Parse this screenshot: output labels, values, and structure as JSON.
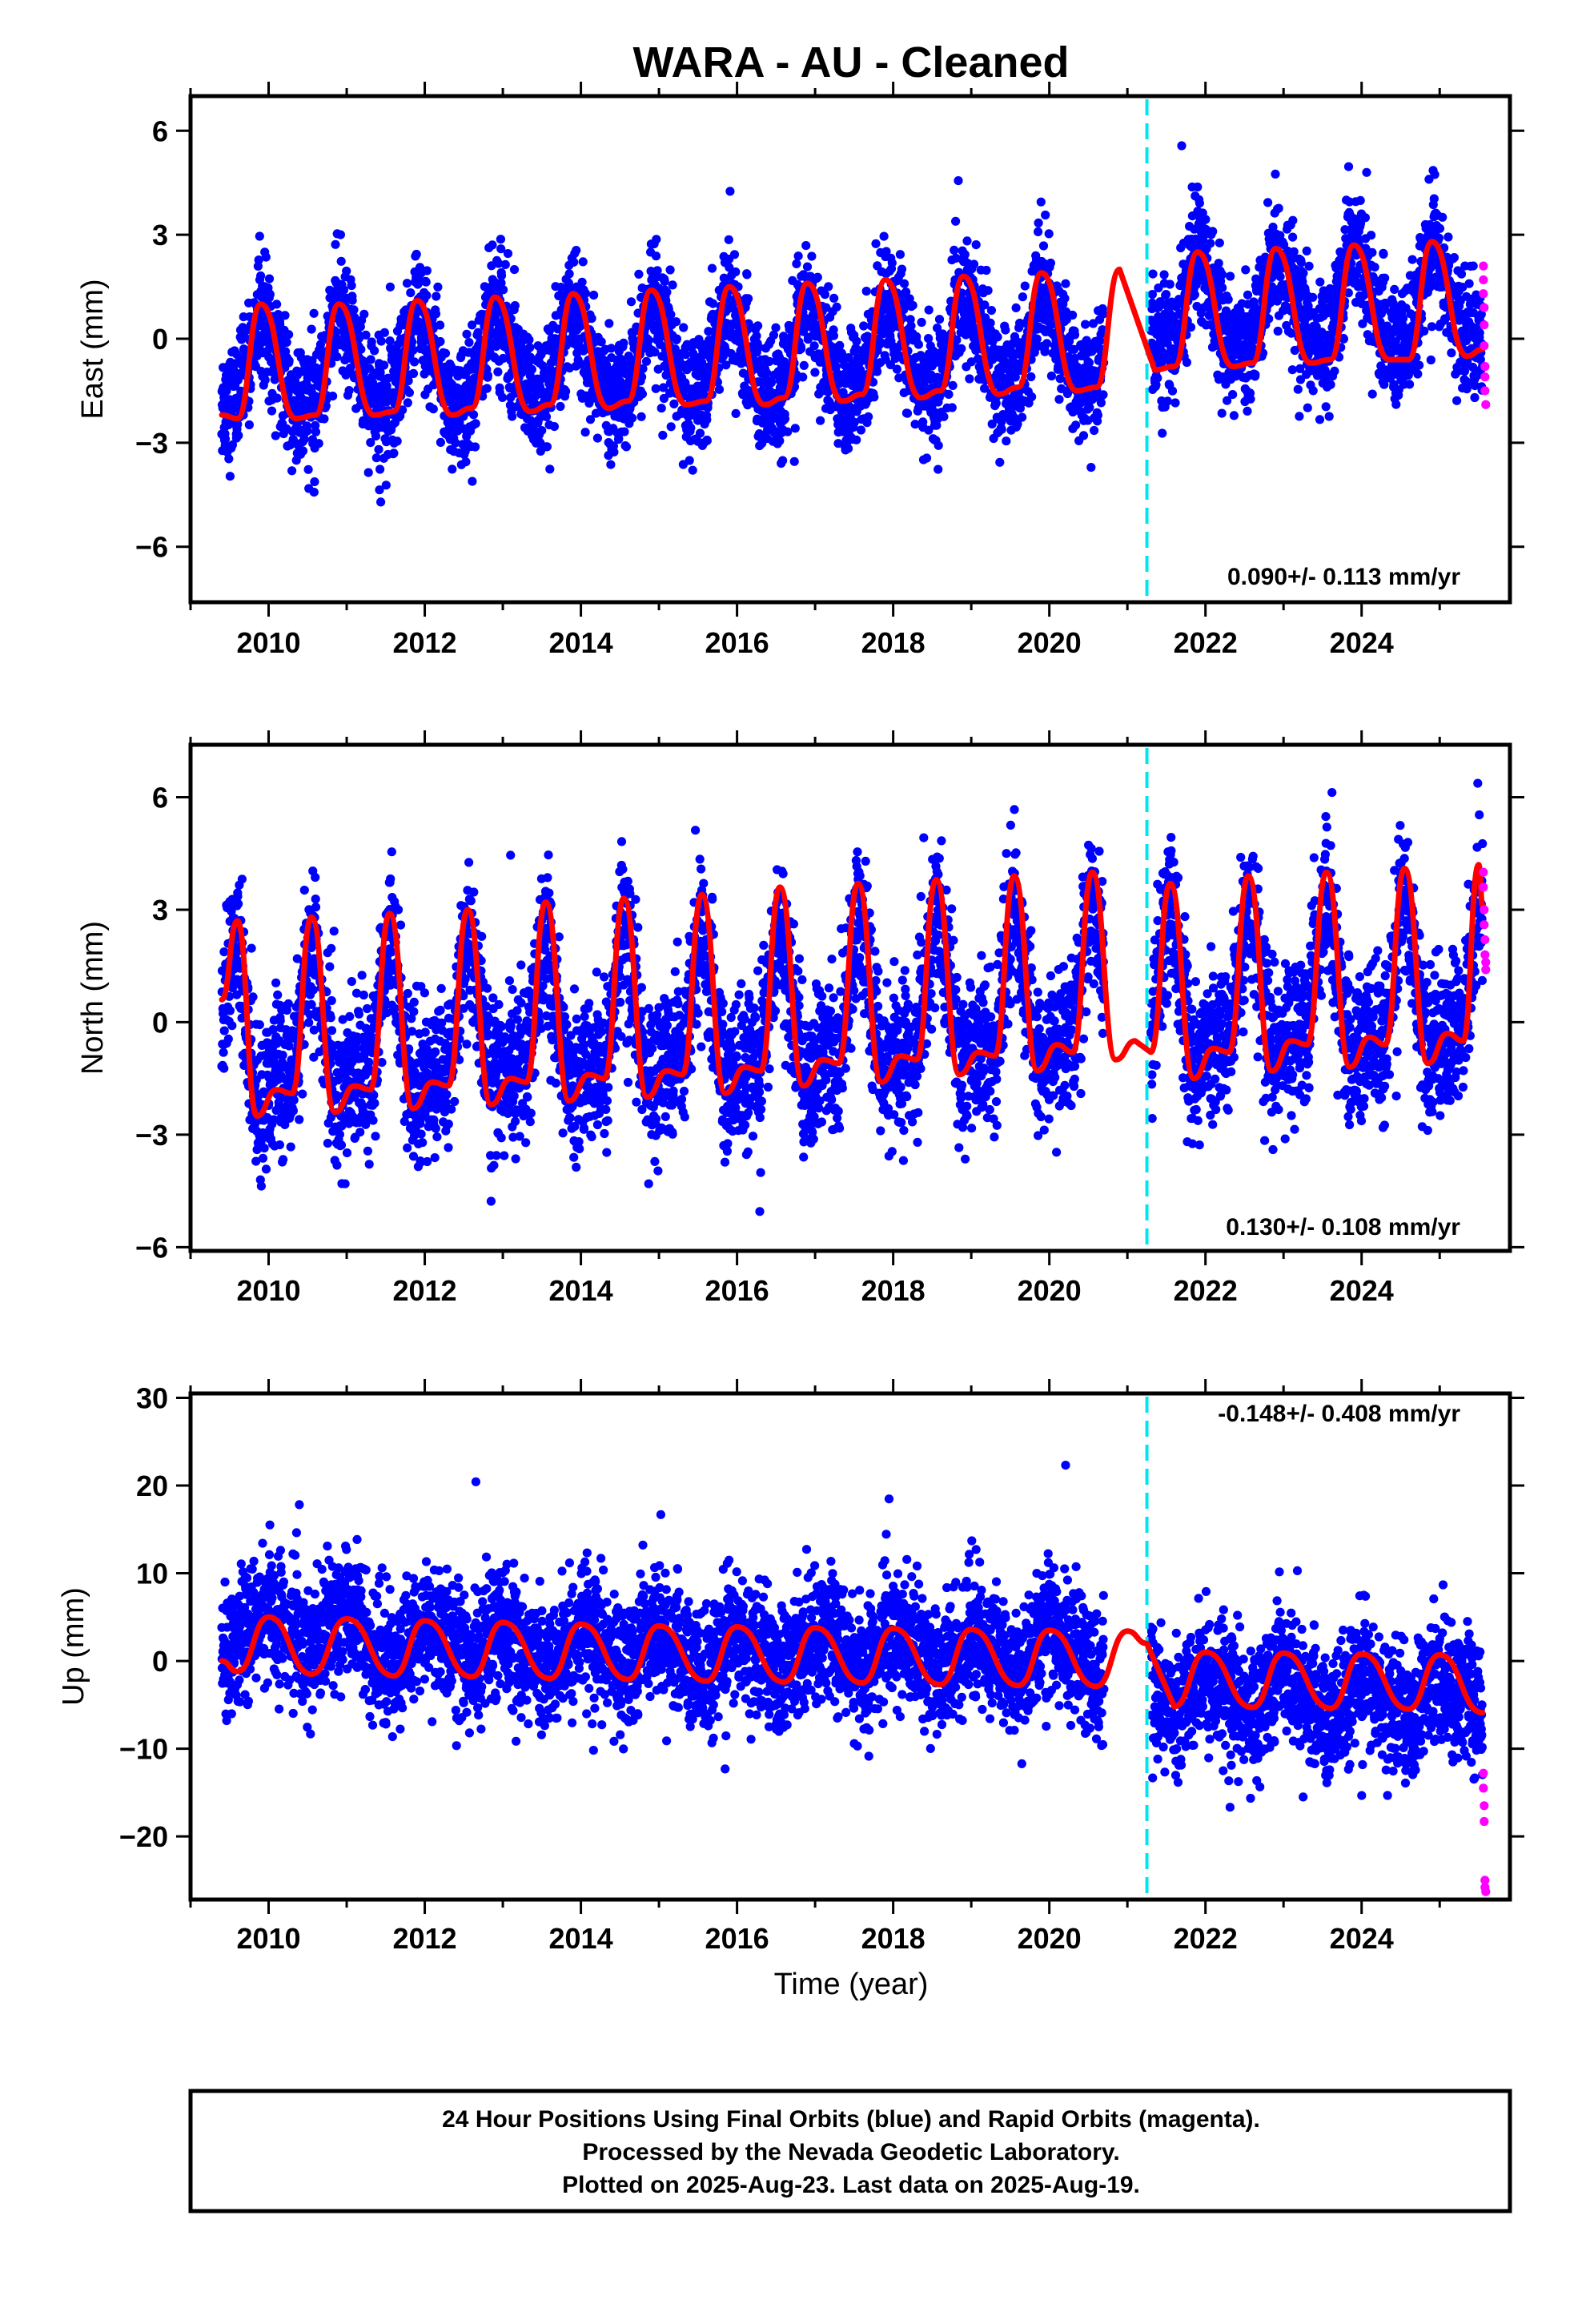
{
  "title": "WARA  - AU - Cleaned",
  "xlabel": "Time (year)",
  "colors": {
    "final_orbits": "#0000ff",
    "rapid_orbits": "#ff00ff",
    "model_fit": "#ff0000",
    "equipment_change": "#00e5ee"
  },
  "footer": {
    "line1": "24 Hour Positions Using Final Orbits (blue) and Rapid Orbits (magenta).",
    "line2": "Processed by the Nevada Geodetic Laboratory.",
    "line3": "Plotted on 2025-Aug-23. Last data on 2025-Aug-19."
  },
  "chart_data": [
    {
      "type": "scatter",
      "component": "east",
      "ylabel": "East (mm)",
      "xlim": [
        2009.0,
        2025.9
      ],
      "ylim": [
        -7.6,
        7.0
      ],
      "xticks": [
        2010,
        2012,
        2014,
        2016,
        2018,
        2020,
        2022,
        2024
      ],
      "yticks": [
        -6,
        -3,
        0,
        3,
        6
      ],
      "ytick_labels": [
        "−6",
        "−3",
        "0",
        "3",
        "6"
      ],
      "rate_label": "0.090+/- 0.113 mm/yr",
      "equipment_change_x": 2021.25,
      "data_gap": [
        2020.7,
        2021.3
      ],
      "series": [
        {
          "name": "Final Orbits",
          "style": "points",
          "x_range": [
            2009.4,
            2025.55
          ],
          "seasonal_amplitude": 1.6,
          "noise_std": 0.85,
          "cluster_offsets": [
            [
              2009.4,
              2021.25,
              0.0
            ],
            [
              2021.25,
              2025.6,
              0.8
            ]
          ]
        },
        {
          "name": "Rapid Orbits",
          "style": "points",
          "x": [
            2025.56,
            2025.56,
            2025.56,
            2025.57,
            2025.57,
            2025.57,
            2025.58,
            2025.58,
            2025.58,
            2025.59
          ],
          "y": [
            2.1,
            1.7,
            1.3,
            0.9,
            0.4,
            -0.2,
            -0.8,
            -1.1,
            -1.5,
            -1.9
          ]
        },
        {
          "name": "Model",
          "style": "line",
          "x": [
            2009.4,
            2009.6,
            2009.9,
            2010.35,
            2010.6,
            2010.9,
            2011.35,
            2011.6,
            2011.9,
            2012.35,
            2012.6,
            2012.9,
            2013.35,
            2013.6,
            2013.9,
            2014.35,
            2014.6,
            2014.9,
            2015.35,
            2015.6,
            2015.9,
            2016.35,
            2016.6,
            2016.9,
            2017.35,
            2017.6,
            2017.9,
            2018.35,
            2018.6,
            2018.9,
            2019.35,
            2019.6,
            2019.9,
            2020.35,
            2020.6,
            2020.9,
            2021.35,
            2021.6,
            2021.9,
            2022.35,
            2022.6,
            2022.9,
            2023.35,
            2023.6,
            2023.9,
            2024.35,
            2024.6,
            2024.9,
            2025.35,
            2025.55
          ],
          "y": [
            -2.2,
            -2.3,
            1.0,
            -2.3,
            -2.2,
            1.0,
            -2.2,
            -2.1,
            1.1,
            -2.2,
            -2.0,
            1.2,
            -2.1,
            -1.9,
            1.3,
            -2.0,
            -1.8,
            1.4,
            -1.9,
            -1.8,
            1.5,
            -1.9,
            -1.7,
            1.6,
            -1.8,
            -1.6,
            1.7,
            -1.7,
            -1.5,
            1.8,
            -1.6,
            -1.4,
            1.9,
            -1.5,
            -1.4,
            2.0,
            -0.9,
            -0.8,
            2.5,
            -0.8,
            -0.7,
            2.6,
            -0.7,
            -0.6,
            2.7,
            -0.6,
            -0.6,
            2.8,
            -0.5,
            -0.3
          ]
        }
      ]
    },
    {
      "type": "scatter",
      "component": "north",
      "ylabel": "North (mm)",
      "xlim": [
        2009.0,
        2025.9
      ],
      "ylim": [
        -6.1,
        7.4
      ],
      "xticks": [
        2010,
        2012,
        2014,
        2016,
        2018,
        2020,
        2022,
        2024
      ],
      "yticks": [
        -6,
        -3,
        0,
        3,
        6
      ],
      "ytick_labels": [
        "−6",
        "−3",
        "0",
        "3",
        "6"
      ],
      "rate_label": "0.130+/- 0.108 mm/yr",
      "equipment_change_x": 2021.25,
      "data_gap": [
        2020.7,
        2021.3
      ],
      "series": [
        {
          "name": "Final Orbits",
          "style": "points",
          "x_range": [
            2009.4,
            2025.55
          ],
          "seasonal_amplitude": 2.9,
          "noise_std": 1.0,
          "cluster_offsets": [
            [
              2009.4,
              2021.25,
              0.0
            ],
            [
              2021.25,
              2025.6,
              0.3
            ]
          ]
        },
        {
          "name": "Rapid Orbits",
          "style": "points",
          "x": [
            2025.56,
            2025.56,
            2025.57,
            2025.57,
            2025.58,
            2025.58,
            2025.59,
            2025.59
          ],
          "y": [
            4.0,
            3.6,
            3.0,
            2.6,
            2.2,
            1.8,
            1.6,
            1.4
          ]
        },
        {
          "name": "Model",
          "style": "line",
          "x": [
            2009.4,
            2009.6,
            2009.85,
            2010.1,
            2010.3,
            2010.55,
            2010.85,
            2011.1,
            2011.3,
            2011.55,
            2011.85,
            2012.1,
            2012.3,
            2012.55,
            2012.85,
            2013.1,
            2013.3,
            2013.55,
            2013.85,
            2014.1,
            2014.3,
            2014.55,
            2014.85,
            2015.1,
            2015.3,
            2015.55,
            2015.85,
            2016.1,
            2016.3,
            2016.55,
            2016.85,
            2017.1,
            2017.3,
            2017.55,
            2017.85,
            2018.1,
            2018.3,
            2018.55,
            2018.85,
            2019.1,
            2019.3,
            2019.55,
            2019.85,
            2020.1,
            2020.3,
            2020.55,
            2020.85,
            2021.1,
            2021.3,
            2021.55,
            2021.85,
            2022.1,
            2022.3,
            2022.55,
            2022.85,
            2023.1,
            2023.3,
            2023.55,
            2023.85,
            2024.1,
            2024.3,
            2024.55,
            2024.85,
            2025.1,
            2025.3,
            2025.5,
            2025.55
          ],
          "y": [
            0.6,
            2.7,
            -2.5,
            -1.8,
            -1.9,
            2.8,
            -2.4,
            -1.7,
            -1.8,
            2.9,
            -2.3,
            -1.6,
            -1.7,
            3.0,
            -2.2,
            -1.5,
            -1.6,
            3.2,
            -2.1,
            -1.4,
            -1.5,
            3.3,
            -2.0,
            -1.3,
            -1.4,
            3.4,
            -1.9,
            -1.2,
            -1.3,
            3.6,
            -1.7,
            -1.0,
            -1.1,
            3.7,
            -1.6,
            -0.9,
            -1.0,
            3.8,
            -1.4,
            -0.8,
            -0.9,
            3.9,
            -1.3,
            -0.6,
            -0.8,
            4.0,
            -1.0,
            -0.5,
            -0.8,
            3.7,
            -1.5,
            -0.7,
            -0.8,
            3.9,
            -1.3,
            -0.5,
            -0.6,
            4.0,
            -1.2,
            -0.4,
            -0.6,
            4.1,
            -1.1,
            -0.3,
            -0.5,
            4.2,
            3.1
          ]
        }
      ]
    },
    {
      "type": "scatter",
      "component": "up",
      "ylabel": "Up (mm)",
      "xlim": [
        2009.0,
        2025.9
      ],
      "ylim": [
        -27.2,
        30.5
      ],
      "xticks": [
        2010,
        2012,
        2014,
        2016,
        2018,
        2020,
        2022,
        2024
      ],
      "yticks": [
        -20,
        -10,
        0,
        10,
        20,
        30
      ],
      "ytick_labels": [
        "−20",
        "−10",
        "0",
        "10",
        "20",
        "30"
      ],
      "rate_label": "-0.148+/- 0.408 mm/yr",
      "equipment_change_x": 2021.25,
      "data_gap": [
        2020.7,
        2021.3
      ],
      "series": [
        {
          "name": "Final Orbits",
          "style": "points",
          "x_range": [
            2009.4,
            2025.55
          ],
          "seasonal_amplitude": 3.2,
          "noise_std": 3.6,
          "cluster_offsets": [
            [
              2009.4,
              2011.2,
              3.5
            ],
            [
              2011.2,
              2021.25,
              1.0
            ],
            [
              2021.25,
              2025.6,
              -3.0
            ]
          ]
        },
        {
          "name": "Rapid Orbits",
          "style": "points",
          "x": [
            2025.56,
            2025.56,
            2025.57,
            2025.57,
            2025.58,
            2025.58,
            2025.59
          ],
          "y": [
            -12.8,
            -14.5,
            -16.5,
            -18.3,
            -25.0,
            -25.8,
            -26.3
          ]
        },
        {
          "name": "Model",
          "style": "line",
          "x": [
            2009.4,
            2009.6,
            2010.0,
            2010.55,
            2011.0,
            2011.6,
            2012.0,
            2012.6,
            2013.0,
            2013.6,
            2014.0,
            2014.6,
            2015.0,
            2015.6,
            2016.0,
            2016.6,
            2017.0,
            2017.6,
            2018.0,
            2018.6,
            2019.0,
            2019.6,
            2020.0,
            2020.6,
            2021.0,
            2021.25,
            2021.6,
            2022.0,
            2022.6,
            2023.0,
            2023.6,
            2024.0,
            2024.6,
            2025.0,
            2025.55
          ],
          "y": [
            0.0,
            -1.2,
            5.0,
            -1.5,
            4.8,
            -1.7,
            4.6,
            -1.8,
            4.4,
            -2.0,
            4.2,
            -2.1,
            4.0,
            -2.3,
            3.9,
            -2.4,
            3.8,
            -2.5,
            3.7,
            -2.7,
            3.6,
            -2.8,
            3.5,
            -2.9,
            3.4,
            2.0,
            -5.2,
            1.0,
            -5.3,
            0.9,
            -5.4,
            0.8,
            -5.5,
            0.7,
            -5.9
          ]
        }
      ]
    }
  ]
}
